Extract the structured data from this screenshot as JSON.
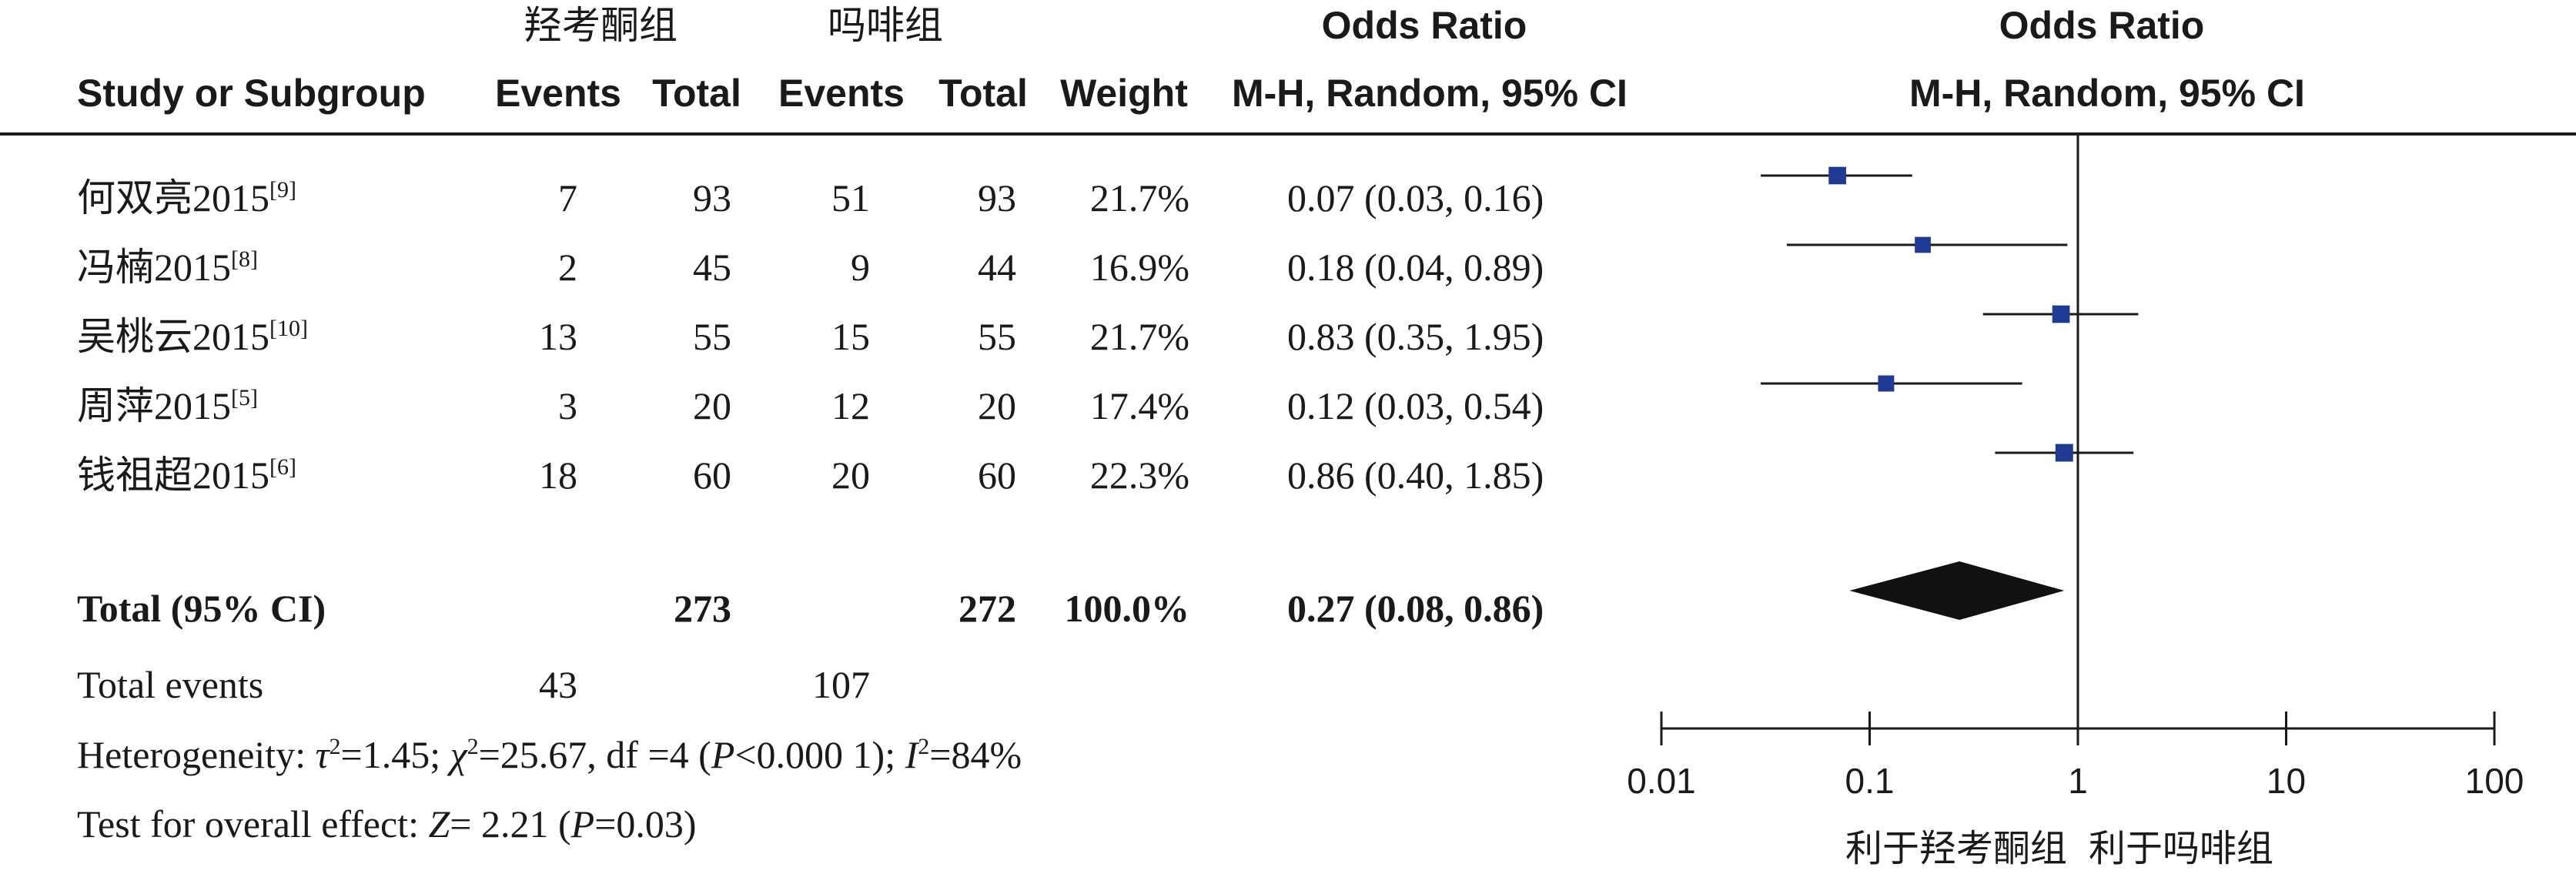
{
  "header": {
    "group_a": "羟考酮组",
    "group_b": "吗啡组",
    "odds_ratio_col": "Odds Ratio",
    "odds_ratio_plot": "Odds Ratio",
    "study_col": "Study or Subgroup",
    "events_a": "Events",
    "total_a": "Total",
    "events_b": "Events",
    "total_b": "Total",
    "weight": "Weight",
    "method_col": "M-H, Random, 95% CI",
    "method_plot": "M-H, Random, 95% CI"
  },
  "rows": [
    {
      "study": "何双亮2015",
      "ref": "[9]",
      "events_a": "7",
      "total_a": "93",
      "events_b": "51",
      "total_b": "93",
      "weight": "21.7%",
      "ci": "0.07 (0.03, 0.16)"
    },
    {
      "study": "冯楠2015",
      "ref": "[8]",
      "events_a": "2",
      "total_a": "45",
      "events_b": "9",
      "total_b": "44",
      "weight": "16.9%",
      "ci": "0.18 (0.04, 0.89)"
    },
    {
      "study": "吴桃云2015",
      "ref": "[10]",
      "events_a": "13",
      "total_a": "55",
      "events_b": "15",
      "total_b": "55",
      "weight": "21.7%",
      "ci": "0.83 (0.35, 1.95)"
    },
    {
      "study": "周萍2015",
      "ref": "[5]",
      "events_a": "3",
      "total_a": "20",
      "events_b": "12",
      "total_b": "20",
      "weight": "17.4%",
      "ci": "0.12 (0.03, 0.54)"
    },
    {
      "study": "钱祖超2015",
      "ref": "[6]",
      "events_a": "18",
      "total_a": "60",
      "events_b": "20",
      "total_b": "60",
      "weight": "22.3%",
      "ci": "0.86 (0.40, 1.85)"
    }
  ],
  "total": {
    "label": "Total (95% CI)",
    "total_a": "273",
    "total_b": "272",
    "weight": "100.0%",
    "ci": "0.27 (0.08, 0.86)"
  },
  "total_events": {
    "label": "Total events",
    "events_a": "43",
    "events_b": "107"
  },
  "footnotes": {
    "heterogeneity": {
      "prefix": "Heterogeneity: ",
      "tau_sym": "τ",
      "tau_val": "=1.45; ",
      "chi_sym": "χ",
      "chi_val": "=25.67, df =4 (",
      "p_sym": "P",
      "p_val": "<0.000 1); ",
      "i_sym": "I",
      "i_val": "=84%",
      "sq": "2"
    },
    "overall": {
      "prefix": "Test for overall effect: ",
      "z_sym": "Z",
      "z_val": "= 2.21 (",
      "p_sym": "P",
      "p_val": "=0.03)"
    }
  },
  "chart_data": {
    "type": "forest",
    "scale": "log",
    "xlim": [
      0.01,
      100
    ],
    "reference_line": 1,
    "x_ticks": [
      0.01,
      0.1,
      1,
      10,
      100
    ],
    "x_tick_labels": [
      "0.01",
      "0.1",
      "1",
      "10",
      "100"
    ],
    "xlabel_left": "利于羟考酮组",
    "xlabel_right": "利于吗啡组",
    "title": "Odds Ratio",
    "subtitle": "M-H, Random, 95% CI",
    "studies": [
      {
        "name": "何双亮2015",
        "or": 0.07,
        "lower": 0.03,
        "upper": 0.16,
        "weight": 21.7
      },
      {
        "name": "冯楠2015",
        "or": 0.18,
        "lower": 0.04,
        "upper": 0.89,
        "weight": 16.9
      },
      {
        "name": "吴桃云2015",
        "or": 0.83,
        "lower": 0.35,
        "upper": 1.95,
        "weight": 21.7
      },
      {
        "name": "周萍2015",
        "or": 0.12,
        "lower": 0.03,
        "upper": 0.54,
        "weight": 17.4
      },
      {
        "name": "钱祖超2015",
        "or": 0.86,
        "lower": 0.4,
        "upper": 1.85,
        "weight": 22.3
      }
    ],
    "pooled": {
      "name": "Total (95% CI)",
      "or": 0.27,
      "lower": 0.08,
      "upper": 0.86
    },
    "colors": {
      "study_marker": "#1f3a93",
      "pooled_marker": "#111111",
      "lines": "#1a1a1a"
    }
  }
}
